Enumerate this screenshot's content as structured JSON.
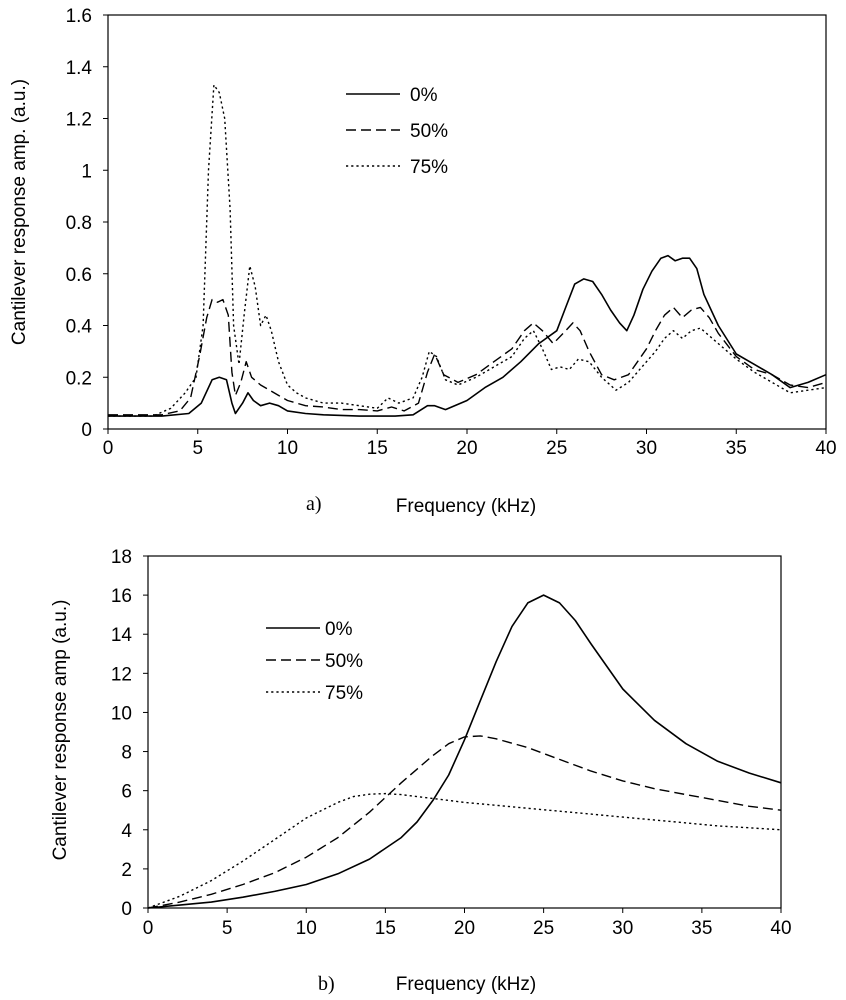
{
  "chart_data": [
    {
      "type": "line",
      "panel_label": "a)",
      "xlabel": "Frequency (kHz)",
      "ylabel": "Cantilever response amp. (a.u.)",
      "xlim": [
        0,
        40
      ],
      "ylim": [
        0,
        1.6
      ],
      "xticks": [
        "0",
        "5",
        "10",
        "15",
        "20",
        "25",
        "30",
        "35",
        "40"
      ],
      "yticks": [
        "0",
        "0.2",
        "0.4",
        "0.6",
        "0.8",
        "1",
        "1.2",
        "1.4",
        "1.6"
      ],
      "legend_position": "top-center",
      "series": [
        {
          "name": "0%",
          "style": "solid",
          "x": [
            0,
            3,
            4.5,
            5.2,
            5.8,
            6.2,
            6.6,
            6.9,
            7.1,
            7.5,
            7.8,
            8.1,
            8.5,
            9,
            9.5,
            10,
            11,
            12,
            14,
            16,
            17,
            17.8,
            18.2,
            18.8,
            20,
            21,
            22,
            23,
            24,
            25,
            25.5,
            26,
            26.5,
            27,
            27.5,
            28,
            28.5,
            28.9,
            29.3,
            29.8,
            30.3,
            30.8,
            31.2,
            31.6,
            32,
            32.4,
            32.8,
            33.2,
            34,
            35,
            36,
            37,
            38,
            39,
            40
          ],
          "y": [
            0.05,
            0.05,
            0.06,
            0.1,
            0.19,
            0.2,
            0.19,
            0.1,
            0.06,
            0.1,
            0.14,
            0.11,
            0.09,
            0.1,
            0.09,
            0.07,
            0.06,
            0.055,
            0.05,
            0.05,
            0.055,
            0.09,
            0.09,
            0.075,
            0.11,
            0.16,
            0.2,
            0.26,
            0.33,
            0.38,
            0.47,
            0.56,
            0.58,
            0.57,
            0.52,
            0.46,
            0.41,
            0.38,
            0.44,
            0.54,
            0.61,
            0.66,
            0.67,
            0.65,
            0.66,
            0.66,
            0.62,
            0.52,
            0.4,
            0.29,
            0.25,
            0.21,
            0.16,
            0.18,
            0.21
          ]
        },
        {
          "name": "50%",
          "style": "dashed",
          "x": [
            0,
            3,
            4,
            4.6,
            5.1,
            5.5,
            5.8,
            6.1,
            6.4,
            6.7,
            6.9,
            7.1,
            7.4,
            7.7,
            8,
            8.5,
            9,
            9.5,
            10,
            11,
            12,
            13,
            14,
            15,
            15.8,
            16.5,
            17.3,
            17.8,
            18.2,
            18.7,
            19.5,
            20.5,
            21.5,
            22.5,
            23.2,
            23.7,
            24.2,
            24.8,
            25.5,
            25.9,
            26.3,
            26.8,
            27.5,
            28.2,
            29,
            30,
            30.5,
            31,
            31.5,
            32,
            32.5,
            33,
            33.5,
            34,
            35,
            36,
            37,
            38,
            39,
            40
          ],
          "y": [
            0.055,
            0.055,
            0.07,
            0.12,
            0.28,
            0.43,
            0.5,
            0.49,
            0.5,
            0.44,
            0.22,
            0.13,
            0.18,
            0.26,
            0.2,
            0.17,
            0.15,
            0.13,
            0.11,
            0.09,
            0.085,
            0.075,
            0.075,
            0.07,
            0.085,
            0.07,
            0.1,
            0.22,
            0.29,
            0.21,
            0.18,
            0.21,
            0.26,
            0.31,
            0.38,
            0.41,
            0.38,
            0.33,
            0.38,
            0.41,
            0.38,
            0.3,
            0.21,
            0.19,
            0.21,
            0.31,
            0.38,
            0.44,
            0.47,
            0.43,
            0.46,
            0.47,
            0.43,
            0.37,
            0.28,
            0.23,
            0.21,
            0.17,
            0.16,
            0.18
          ]
        },
        {
          "name": "75%",
          "style": "dotted",
          "x": [
            0,
            2.5,
            3.5,
            4.3,
            4.9,
            5.3,
            5.6,
            5.9,
            6.2,
            6.5,
            6.8,
            7,
            7.3,
            7.6,
            7.9,
            8.2,
            8.5,
            8.8,
            9.1,
            9.5,
            10,
            10.5,
            11,
            12,
            13,
            14,
            15,
            15.6,
            16.2,
            17,
            17.5,
            17.9,
            18.3,
            18.8,
            19.5,
            20.5,
            21.5,
            22.5,
            23.2,
            23.7,
            24.2,
            24.7,
            25.2,
            25.7,
            26.2,
            26.8,
            27.5,
            28.3,
            29,
            30,
            30.5,
            31,
            31.5,
            32,
            32.5,
            33,
            34,
            35,
            36,
            37,
            38,
            39,
            40
          ],
          "y": [
            0.05,
            0.05,
            0.08,
            0.14,
            0.2,
            0.4,
            1.0,
            1.33,
            1.3,
            1.2,
            0.85,
            0.4,
            0.25,
            0.45,
            0.63,
            0.55,
            0.4,
            0.44,
            0.38,
            0.26,
            0.17,
            0.14,
            0.12,
            0.1,
            0.1,
            0.09,
            0.08,
            0.12,
            0.1,
            0.12,
            0.2,
            0.3,
            0.28,
            0.19,
            0.17,
            0.2,
            0.24,
            0.28,
            0.35,
            0.38,
            0.31,
            0.23,
            0.24,
            0.23,
            0.27,
            0.26,
            0.2,
            0.15,
            0.18,
            0.26,
            0.3,
            0.35,
            0.38,
            0.35,
            0.38,
            0.39,
            0.33,
            0.27,
            0.22,
            0.18,
            0.14,
            0.15,
            0.16
          ]
        }
      ]
    },
    {
      "type": "line",
      "panel_label": "b)",
      "xlabel": "Frequency (kHz)",
      "ylabel": "Cantilever response amp (a.u.)",
      "xlim": [
        0,
        40
      ],
      "ylim": [
        0,
        18
      ],
      "xticks": [
        "0",
        "5",
        "10",
        "15",
        "20",
        "25",
        "30",
        "35",
        "40"
      ],
      "yticks": [
        "0",
        "2",
        "4",
        "6",
        "8",
        "10",
        "12",
        "14",
        "16",
        "18"
      ],
      "legend_position": "top-left",
      "series": [
        {
          "name": "0%",
          "style": "solid",
          "x": [
            0,
            2,
            4,
            6,
            8,
            10,
            12,
            14,
            16,
            17,
            18,
            19,
            20,
            21,
            22,
            23,
            24,
            25,
            26,
            27,
            28,
            30,
            32,
            34,
            36,
            38,
            40
          ],
          "y": [
            0,
            0.15,
            0.3,
            0.55,
            0.85,
            1.2,
            1.75,
            2.5,
            3.6,
            4.4,
            5.5,
            6.8,
            8.6,
            10.6,
            12.6,
            14.4,
            15.6,
            16.0,
            15.6,
            14.7,
            13.5,
            11.2,
            9.6,
            8.4,
            7.5,
            6.9,
            6.4
          ]
        },
        {
          "name": "50%",
          "style": "dashed",
          "x": [
            0,
            2,
            4,
            6,
            8,
            10,
            12,
            14,
            16,
            18,
            19,
            20,
            21,
            22,
            24,
            26,
            28,
            30,
            32,
            34,
            36,
            38,
            40
          ],
          "y": [
            0,
            0.3,
            0.7,
            1.2,
            1.8,
            2.6,
            3.6,
            4.9,
            6.4,
            7.8,
            8.4,
            8.75,
            8.8,
            8.65,
            8.2,
            7.6,
            7.0,
            6.5,
            6.1,
            5.8,
            5.5,
            5.2,
            5.0
          ]
        },
        {
          "name": "75%",
          "style": "dotted",
          "x": [
            0,
            2,
            4,
            6,
            8,
            10,
            12,
            13,
            14,
            15,
            16,
            18,
            20,
            22,
            24,
            26,
            28,
            30,
            32,
            34,
            36,
            38,
            40
          ],
          "y": [
            0,
            0.6,
            1.4,
            2.4,
            3.5,
            4.6,
            5.4,
            5.7,
            5.82,
            5.85,
            5.8,
            5.6,
            5.4,
            5.25,
            5.1,
            4.95,
            4.8,
            4.65,
            4.5,
            4.35,
            4.2,
            4.1,
            4.0
          ]
        }
      ]
    }
  ]
}
